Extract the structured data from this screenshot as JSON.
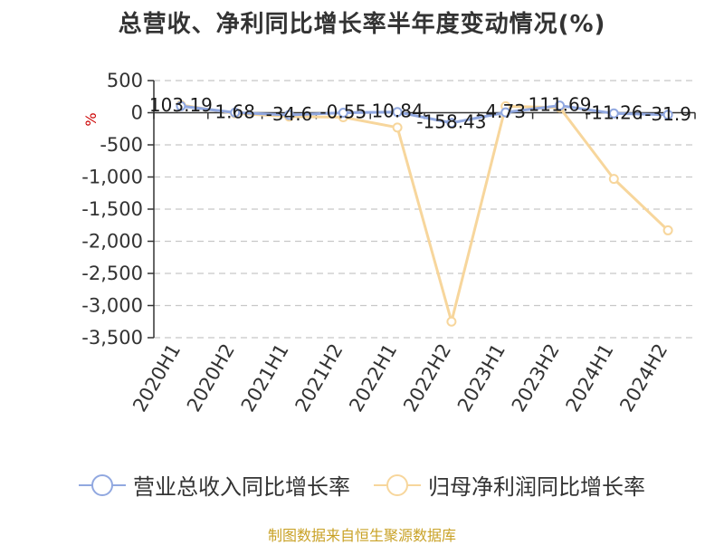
{
  "chart_data": {
    "type": "line",
    "title": "总营收、净利同比增长率半年度变动情况(%)",
    "ylabel": "%",
    "categories": [
      "2020H1",
      "2020H2",
      "2021H1",
      "2021H2",
      "2022H1",
      "2022H2",
      "2023H1",
      "2023H2",
      "2024H1",
      "2024H2"
    ],
    "y_ticks": [
      "500",
      "0",
      "-500",
      "-1,000",
      "-1,500",
      "-2,000",
      "-2,500",
      "-3,000",
      "-3,500"
    ],
    "ylim": [
      -3500,
      500
    ],
    "grid": true,
    "legend_position": "bottom",
    "series": [
      {
        "name": "营业总收入同比增长率",
        "color": "#91a8e0",
        "values": [
          103.19,
          1.68,
          -34.6,
          -0.55,
          10.84,
          -158.43,
          4.73,
          111.69,
          -11.26,
          -31.9
        ],
        "labels": [
          "103.19",
          "1.68",
          "-34.6",
          "-0.55",
          "10.84",
          "-158.43",
          "4.73",
          "111.69",
          "-11.26",
          "-31.9"
        ]
      },
      {
        "name": "归母净利润同比增长率",
        "color": "#f7d69c",
        "values": [
          120,
          -10,
          -60,
          -70,
          -230,
          -3250,
          100,
          80,
          -1030,
          -1830
        ]
      }
    ]
  },
  "source_note": "制图数据来自恒生聚源数据库"
}
